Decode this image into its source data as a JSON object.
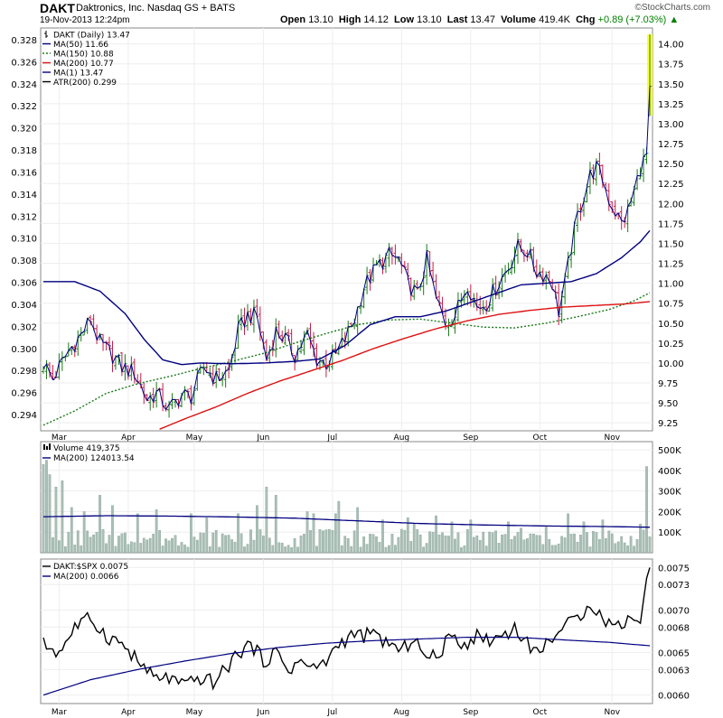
{
  "header": {
    "symbol": "DAKT",
    "name": "Daktronics, Inc. Nasdaq GS + BATS",
    "date": "19-Nov-2013 12:24pm",
    "stats": [
      {
        "label": "Open",
        "value": "13.10"
      },
      {
        "label": "High",
        "value": "14.12"
      },
      {
        "label": "Low",
        "value": "13.10"
      },
      {
        "label": "Last",
        "value": "13.47"
      },
      {
        "label": "Volume",
        "value": "419.4K"
      }
    ],
    "chg_label": "Chg",
    "chg_value": "+0.89 (+7.03%)",
    "chg_arrow": "▲",
    "watermark": "©StockCharts.com"
  },
  "colors": {
    "price_up": "#1a7a1a",
    "price_down": "#c0204a",
    "price_line": "#000080",
    "ma50": "#000080",
    "ma150": "#1a7a1a",
    "ma200": "#dd1111",
    "volume_bar": "#a9bfb6",
    "highlight": "#ffff33"
  },
  "chart_data": [
    {
      "type": "line",
      "panel": "price",
      "legend": [
        {
          "label": "DAKT (Daily) 13.47",
          "style": "bar"
        },
        {
          "label": "MA(50) 11.66",
          "style": "solid",
          "color": "#000080"
        },
        {
          "label": "MA(150) 10.88",
          "style": "dotted",
          "color": "#1a7a1a"
        },
        {
          "label": "MA(200) 10.77",
          "style": "solid",
          "color": "#dd1111"
        },
        {
          "label": "MA(1) 13.47",
          "style": "solid",
          "color": "#000080"
        },
        {
          "label": "ATR(200) 0.299",
          "style": "solid",
          "color": "#000000"
        }
      ],
      "legend_placement": "top-left",
      "x_ticks": [
        "Mar",
        "Apr",
        "May",
        "Jun",
        "Jul",
        "Aug",
        "Sep",
        "Oct",
        "Nov"
      ],
      "x_tick_index": [
        5,
        27,
        48,
        70,
        92,
        114,
        136,
        158,
        181
      ],
      "n_points": 194,
      "right_axis": {
        "ylim": [
          9.15,
          14.2
        ],
        "ticks": [
          "9.25",
          "9.50",
          "9.75",
          "10.00",
          "10.25",
          "10.50",
          "10.75",
          "11.00",
          "11.25",
          "11.50",
          "11.75",
          "12.00",
          "12.25",
          "12.50",
          "12.75",
          "13.00",
          "13.25",
          "13.50",
          "13.75",
          "14.00"
        ]
      },
      "left_axis": {
        "label_scale": "ATR",
        "ticks": [
          "0.294",
          "0.296",
          "0.298",
          "0.300",
          "0.302",
          "0.304",
          "0.306",
          "0.308",
          "0.310",
          "0.312",
          "0.314",
          "0.316",
          "0.318",
          "0.320",
          "0.322",
          "0.324",
          "0.326",
          "0.328"
        ]
      },
      "close_keypoints": [
        [
          0,
          10.0
        ],
        [
          3,
          9.8
        ],
        [
          8,
          10.15
        ],
        [
          12,
          10.35
        ],
        [
          15,
          10.55
        ],
        [
          18,
          10.25
        ],
        [
          22,
          10.1
        ],
        [
          25,
          9.95
        ],
        [
          29,
          9.88
        ],
        [
          33,
          9.55
        ],
        [
          36,
          9.62
        ],
        [
          40,
          9.42
        ],
        [
          44,
          9.6
        ],
        [
          47,
          9.58
        ],
        [
          51,
          9.95
        ],
        [
          55,
          9.8
        ],
        [
          59,
          9.9
        ],
        [
          62,
          10.4
        ],
        [
          65,
          10.6
        ],
        [
          68,
          10.58
        ],
        [
          71,
          10.05
        ],
        [
          74,
          10.4
        ],
        [
          77,
          10.3
        ],
        [
          80,
          10.1
        ],
        [
          84,
          10.35
        ],
        [
          87,
          10.05
        ],
        [
          90,
          10.0
        ],
        [
          93,
          10.1
        ],
        [
          96,
          10.3
        ],
        [
          99,
          10.55
        ],
        [
          102,
          10.95
        ],
        [
          106,
          11.2
        ],
        [
          110,
          11.35
        ],
        [
          113,
          11.3
        ],
        [
          116,
          11.0
        ],
        [
          119,
          10.85
        ],
        [
          122,
          11.3
        ],
        [
          125,
          10.8
        ],
        [
          128,
          10.5
        ],
        [
          131,
          10.6
        ],
        [
          135,
          11.0
        ],
        [
          138,
          10.7
        ],
        [
          141,
          10.75
        ],
        [
          144,
          10.95
        ],
        [
          148,
          11.2
        ],
        [
          151,
          11.45
        ],
        [
          154,
          11.4
        ],
        [
          157,
          11.15
        ],
        [
          160,
          11.1
        ],
        [
          162,
          11.0
        ],
        [
          164,
          10.65
        ],
        [
          166,
          11.0
        ],
        [
          168,
          11.45
        ],
        [
          170,
          11.85
        ],
        [
          172,
          12.1
        ],
        [
          174,
          12.35
        ],
        [
          176,
          12.45
        ],
        [
          178,
          12.3
        ],
        [
          180,
          12.05
        ],
        [
          182,
          11.9
        ],
        [
          184,
          11.75
        ],
        [
          186,
          11.9
        ],
        [
          188,
          12.15
        ],
        [
          190,
          12.45
        ],
        [
          192,
          12.6
        ],
        [
          193,
          13.47
        ]
      ],
      "ma50_keypoints": [
        [
          0,
          11.02
        ],
        [
          10,
          11.02
        ],
        [
          18,
          10.9
        ],
        [
          26,
          10.62
        ],
        [
          32,
          10.3
        ],
        [
          38,
          10.04
        ],
        [
          44,
          9.98
        ],
        [
          50,
          10.0
        ],
        [
          60,
          9.99
        ],
        [
          70,
          10.0
        ],
        [
          80,
          10.02
        ],
        [
          88,
          10.05
        ],
        [
          96,
          10.22
        ],
        [
          104,
          10.48
        ],
        [
          112,
          10.58
        ],
        [
          120,
          10.58
        ],
        [
          128,
          10.65
        ],
        [
          136,
          10.76
        ],
        [
          144,
          10.87
        ],
        [
          152,
          10.98
        ],
        [
          160,
          11.0
        ],
        [
          168,
          11.02
        ],
        [
          176,
          11.12
        ],
        [
          184,
          11.32
        ],
        [
          190,
          11.52
        ],
        [
          193,
          11.66
        ]
      ],
      "ma150_keypoints": [
        [
          0,
          9.22
        ],
        [
          10,
          9.4
        ],
        [
          20,
          9.62
        ],
        [
          30,
          9.74
        ],
        [
          40,
          9.83
        ],
        [
          50,
          9.93
        ],
        [
          60,
          10.02
        ],
        [
          70,
          10.12
        ],
        [
          80,
          10.25
        ],
        [
          90,
          10.37
        ],
        [
          100,
          10.48
        ],
        [
          110,
          10.54
        ],
        [
          120,
          10.55
        ],
        [
          130,
          10.5
        ],
        [
          140,
          10.45
        ],
        [
          150,
          10.44
        ],
        [
          160,
          10.5
        ],
        [
          170,
          10.58
        ],
        [
          180,
          10.67
        ],
        [
          188,
          10.78
        ],
        [
          193,
          10.88
        ]
      ],
      "ma200_keypoints": [
        [
          37,
          9.17
        ],
        [
          45,
          9.3
        ],
        [
          55,
          9.45
        ],
        [
          65,
          9.62
        ],
        [
          75,
          9.77
        ],
        [
          85,
          9.9
        ],
        [
          95,
          10.03
        ],
        [
          105,
          10.18
        ],
        [
          115,
          10.31
        ],
        [
          125,
          10.43
        ],
        [
          135,
          10.53
        ],
        [
          145,
          10.61
        ],
        [
          155,
          10.66
        ],
        [
          165,
          10.7
        ],
        [
          175,
          10.72
        ],
        [
          185,
          10.74
        ],
        [
          193,
          10.77
        ]
      ]
    },
    {
      "type": "bar",
      "panel": "volume",
      "legend": [
        {
          "label": "Volume 419,375",
          "style": "bar"
        },
        {
          "label": "MA(200) 124013.54",
          "style": "solid",
          "color": "#000080"
        }
      ],
      "right_axis": {
        "ylim": [
          0,
          540000
        ],
        "ticks": [
          "100K",
          "200K",
          "300K",
          "400K",
          "500K"
        ]
      },
      "spikes": [
        [
          0,
          430000
        ],
        [
          1,
          450000
        ],
        [
          2,
          380000
        ],
        [
          4,
          320000
        ],
        [
          6,
          350000
        ],
        [
          9,
          220000
        ],
        [
          13,
          200000
        ],
        [
          18,
          280000
        ],
        [
          22,
          230000
        ],
        [
          30,
          190000
        ],
        [
          36,
          210000
        ],
        [
          47,
          190000
        ],
        [
          52,
          170000
        ],
        [
          62,
          190000
        ],
        [
          68,
          230000
        ],
        [
          71,
          320000
        ],
        [
          74,
          280000
        ],
        [
          84,
          200000
        ],
        [
          86,
          190000
        ],
        [
          93,
          190000
        ],
        [
          94,
          250000
        ],
        [
          100,
          220000
        ],
        [
          108,
          160000
        ],
        [
          116,
          170000
        ],
        [
          118,
          140000
        ],
        [
          125,
          180000
        ],
        [
          130,
          150000
        ],
        [
          136,
          160000
        ],
        [
          148,
          150000
        ],
        [
          152,
          120000
        ],
        [
          160,
          130000
        ],
        [
          167,
          190000
        ],
        [
          172,
          150000
        ],
        [
          178,
          160000
        ],
        [
          190,
          140000
        ],
        [
          192,
          419375
        ]
      ],
      "ma_keypoints": [
        [
          0,
          175000
        ],
        [
          20,
          180000
        ],
        [
          40,
          178000
        ],
        [
          60,
          174000
        ],
        [
          80,
          168000
        ],
        [
          100,
          155000
        ],
        [
          120,
          142000
        ],
        [
          140,
          135000
        ],
        [
          160,
          130000
        ],
        [
          180,
          127000
        ],
        [
          193,
          124000
        ]
      ]
    },
    {
      "type": "line",
      "panel": "relative",
      "legend": [
        {
          "label": "DAKT:$SPX 0.0075",
          "style": "solid",
          "color": "#000000"
        },
        {
          "label": "MA(200) 0.0066",
          "style": "solid",
          "color": "#000080"
        }
      ],
      "right_axis": {
        "ylim": [
          0.0059,
          0.0076
        ],
        "ticks": [
          "0.0060",
          "0.0063",
          "0.0065",
          "0.0068",
          "0.0070",
          "0.0073",
          "0.0075"
        ]
      },
      "ratio_keypoints": [
        [
          0,
          0.0066
        ],
        [
          5,
          0.0065
        ],
        [
          10,
          0.0068
        ],
        [
          15,
          0.0069
        ],
        [
          20,
          0.0067
        ],
        [
          25,
          0.0066
        ],
        [
          30,
          0.0064
        ],
        [
          35,
          0.0062
        ],
        [
          40,
          0.0062
        ],
        [
          45,
          0.0061
        ],
        [
          50,
          0.0062
        ],
        [
          54,
          0.00615
        ],
        [
          58,
          0.0063
        ],
        [
          62,
          0.0065
        ],
        [
          66,
          0.0066
        ],
        [
          70,
          0.0064
        ],
        [
          74,
          0.0065
        ],
        [
          78,
          0.0063
        ],
        [
          82,
          0.0064
        ],
        [
          86,
          0.0063
        ],
        [
          90,
          0.0064
        ],
        [
          94,
          0.0066
        ],
        [
          98,
          0.0067
        ],
        [
          102,
          0.0067
        ],
        [
          106,
          0.0067
        ],
        [
          110,
          0.0066
        ],
        [
          114,
          0.0065
        ],
        [
          118,
          0.0067
        ],
        [
          122,
          0.0064
        ],
        [
          126,
          0.0065
        ],
        [
          130,
          0.0067
        ],
        [
          134,
          0.0066
        ],
        [
          138,
          0.0067
        ],
        [
          142,
          0.00665
        ],
        [
          146,
          0.0067
        ],
        [
          150,
          0.0068
        ],
        [
          154,
          0.0066
        ],
        [
          158,
          0.0065
        ],
        [
          162,
          0.0067
        ],
        [
          166,
          0.0068
        ],
        [
          170,
          0.0069
        ],
        [
          174,
          0.0071
        ],
        [
          178,
          0.0069
        ],
        [
          182,
          0.0068
        ],
        [
          186,
          0.0069
        ],
        [
          190,
          0.0069
        ],
        [
          193,
          0.0075
        ]
      ],
      "ma_keypoints": [
        [
          0,
          0.006
        ],
        [
          15,
          0.00618
        ],
        [
          30,
          0.0063
        ],
        [
          45,
          0.0064
        ],
        [
          60,
          0.00649
        ],
        [
          75,
          0.00656
        ],
        [
          90,
          0.00661
        ],
        [
          105,
          0.00664
        ],
        [
          120,
          0.00666
        ],
        [
          135,
          0.00668
        ],
        [
          150,
          0.00668
        ],
        [
          165,
          0.00665
        ],
        [
          180,
          0.00662
        ],
        [
          193,
          0.00658
        ]
      ]
    }
  ]
}
